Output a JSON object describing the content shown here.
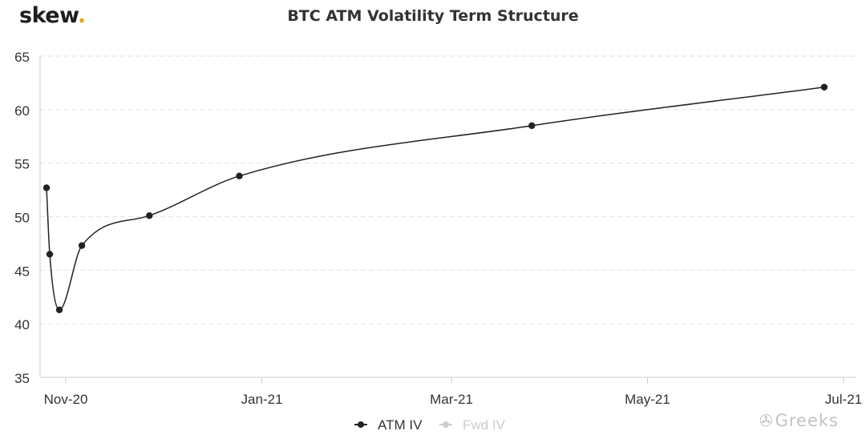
{
  "header": {
    "logo_text": "skew",
    "logo_dot": ".",
    "logo_dot_color": "#e3a81c"
  },
  "watermark": {
    "text": "Greeks",
    "icon": "wechat-icon"
  },
  "chart_data": {
    "type": "line",
    "title": "BTC ATM Volatility Term Structure",
    "xlabel": "",
    "ylabel": "",
    "ylim": [
      35,
      65
    ],
    "yticks": [
      35,
      40,
      45,
      50,
      55,
      60,
      65
    ],
    "xlim": [
      "2020-10-24",
      "2021-07-05"
    ],
    "xticks": [
      {
        "date": "2020-11-01",
        "label": "Nov-20"
      },
      {
        "date": "2021-01-01",
        "label": "Jan-21"
      },
      {
        "date": "2021-03-01",
        "label": "Mar-21"
      },
      {
        "date": "2021-05-01",
        "label": "May-21"
      },
      {
        "date": "2021-07-01",
        "label": "Jul-21"
      }
    ],
    "grid": true,
    "legend_position": "bottom-center",
    "series": [
      {
        "name": "ATM IV",
        "color": "#222222",
        "visible": true,
        "points": [
          {
            "x": "2020-10-26",
            "y": 52.7
          },
          {
            "x": "2020-10-27",
            "y": 46.5
          },
          {
            "x": "2020-10-30",
            "y": 41.3
          },
          {
            "x": "2020-11-06",
            "y": 47.3
          },
          {
            "x": "2020-11-27",
            "y": 50.1
          },
          {
            "x": "2020-12-25",
            "y": 53.8
          },
          {
            "x": "2021-03-26",
            "y": 58.5
          },
          {
            "x": "2021-06-25",
            "y": 62.1
          }
        ]
      },
      {
        "name": "Fwd IV",
        "color": "#cccccc",
        "visible": false,
        "points": []
      }
    ]
  }
}
